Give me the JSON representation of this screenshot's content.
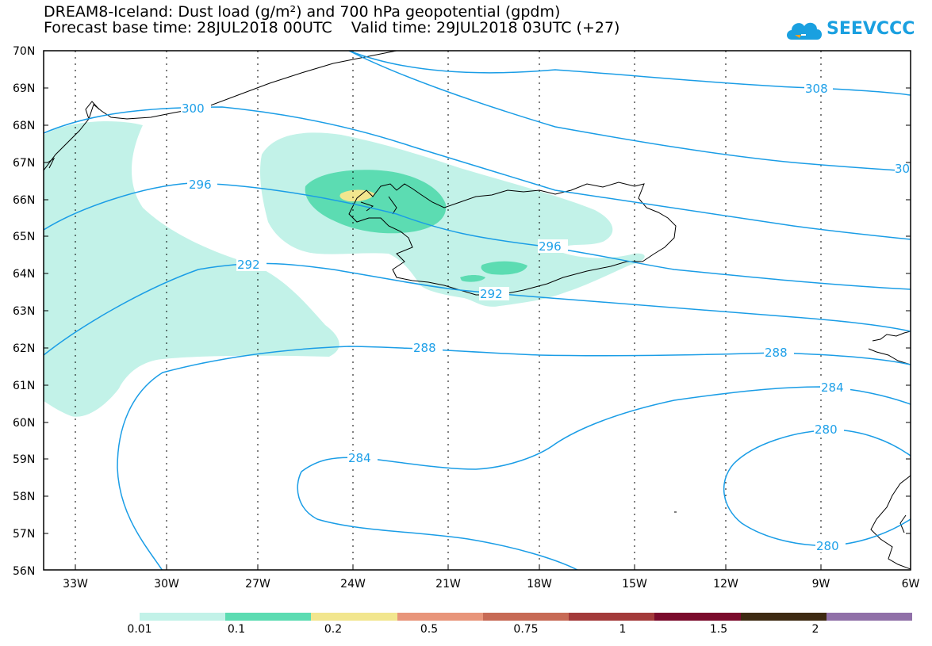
{
  "title_line1": "DREAM8-Iceland: Dust load (g/m²) and 700 hPa geopotential (gpdm)",
  "title_line2": "Forecast base time: 28JUL2018 00UTC    Valid time: 29JUL2018 03UTC (+27)",
  "logo_text": "SEEVCCC",
  "colors": {
    "contour": "#1a9de6",
    "dust_0_01": "#c2f2e8",
    "dust_0_1": "#5cdcb2",
    "dust_0_2": "#f2e68e",
    "coastline": "#000000"
  },
  "axes": {
    "lat_labels": [
      "70N",
      "69N",
      "68N",
      "67N",
      "66N",
      "65N",
      "64N",
      "63N",
      "62N",
      "61N",
      "60N",
      "59N",
      "58N",
      "57N",
      "56N"
    ],
    "lon_labels": [
      "33W",
      "30W",
      "27W",
      "24W",
      "21W",
      "18W",
      "15W",
      "12W",
      "9W",
      "6W"
    ]
  },
  "contour_labels": [
    "308",
    "300",
    "30",
    "296",
    "296",
    "292",
    "292",
    "288",
    "288",
    "284",
    "284",
    "280",
    "280"
  ],
  "legend": {
    "colors": [
      "#c2f2e8",
      "#5cdcb2",
      "#f2e68e",
      "#e8957a",
      "#c76a55",
      "#a33a3a",
      "#7b0b2c",
      "#3e2a12",
      "#9070a8"
    ],
    "labels": [
      "0.01",
      "0.1",
      "0.2",
      "0.5",
      "0.75",
      "1",
      "1.5",
      "2"
    ]
  }
}
